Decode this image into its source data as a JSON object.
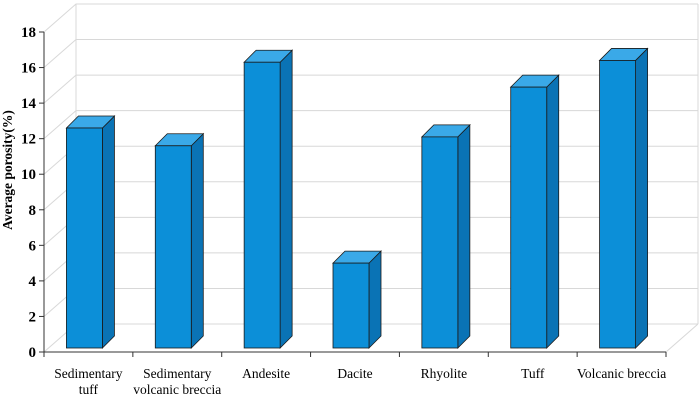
{
  "chart_data": {
    "type": "bar",
    "style": "3d-bar",
    "categories": [
      [
        "Sedimentary",
        "tuff"
      ],
      [
        "Sedimentary",
        "volcanic breccia"
      ],
      [
        "Andesite"
      ],
      [
        "Dacite"
      ],
      [
        "Rhyolite"
      ],
      [
        "Tuff"
      ],
      [
        "Volcanic breccia"
      ]
    ],
    "values": [
      12.6,
      11.6,
      16.3,
      5.0,
      12.1,
      14.9,
      16.4
    ],
    "ylabel": "Average porosity(%)",
    "xlabel": "",
    "title": "",
    "ylim": [
      0,
      18
    ],
    "yticks": [
      0,
      2,
      4,
      6,
      8,
      10,
      12,
      14,
      16,
      18
    ],
    "grid": true,
    "legend": "none",
    "colors": {
      "bar_front": "#0C8FD8",
      "bar_side": "#0A73B5",
      "bar_top": "#3AA9E8",
      "bar_stroke": "#1a1a1a",
      "grid": "#d8d8d8",
      "axis": "#333333"
    }
  }
}
